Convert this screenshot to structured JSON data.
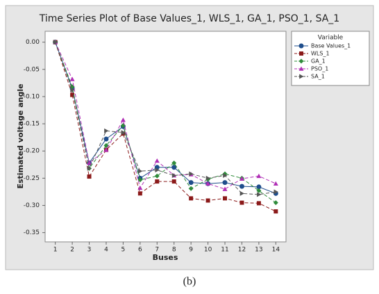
{
  "chart_data": {
    "type": "line",
    "title": "Time Series Plot of Base Values_1, WLS_1, GA_1, PSO_1, SA_1",
    "xlabel": "Buses",
    "ylabel": "Estimated voltage angle",
    "legend_title": "Variable",
    "legend_position": "right",
    "caption": "(b)",
    "x": [
      1,
      2,
      3,
      4,
      5,
      6,
      7,
      8,
      9,
      10,
      11,
      12,
      13,
      14
    ],
    "xlim": [
      0.4,
      14.6
    ],
    "xticks": [
      1,
      2,
      3,
      4,
      5,
      6,
      7,
      8,
      9,
      10,
      11,
      12,
      13,
      14
    ],
    "ylim": [
      -0.367,
      0.02
    ],
    "yticks": [
      {
        "value": 0,
        "label": "0.00"
      },
      {
        "value": -0.05,
        "label": "-0.05"
      },
      {
        "value": -0.1,
        "label": "-0.10"
      },
      {
        "value": -0.15,
        "label": "-0.15"
      },
      {
        "value": -0.2,
        "label": "-0.20"
      },
      {
        "value": -0.25,
        "label": "-0.25"
      },
      {
        "value": -0.3,
        "label": "-0.30"
      },
      {
        "value": -0.35,
        "label": "-0.35"
      }
    ],
    "series": [
      {
        "name": "Base Values_1",
        "color": "#1f4e8c",
        "marker": "circle",
        "dashed": false,
        "values": [
          0,
          -0.085,
          -0.222,
          -0.178,
          -0.155,
          -0.25,
          -0.23,
          -0.23,
          -0.258,
          -0.26,
          -0.258,
          -0.265,
          -0.266,
          -0.278
        ]
      },
      {
        "name": "WLS_1",
        "color": "#8b1a1a",
        "marker": "square",
        "dashed": true,
        "values": [
          0,
          -0.097,
          -0.247,
          -0.198,
          -0.168,
          -0.278,
          -0.256,
          -0.256,
          -0.287,
          -0.291,
          -0.287,
          -0.295,
          -0.296,
          -0.311
        ]
      },
      {
        "name": "GA_1",
        "color": "#2e8b3a",
        "marker": "diamond",
        "dashed": true,
        "values": [
          0,
          -0.082,
          -0.232,
          -0.19,
          -0.153,
          -0.253,
          -0.246,
          -0.222,
          -0.269,
          -0.252,
          -0.242,
          -0.25,
          -0.273,
          -0.295
        ]
      },
      {
        "name": "PSO_1",
        "color": "#b02fb5",
        "marker": "triangle",
        "dashed": true,
        "values": [
          0,
          -0.068,
          -0.222,
          -0.198,
          -0.143,
          -0.268,
          -0.218,
          -0.245,
          -0.243,
          -0.26,
          -0.27,
          -0.251,
          -0.246,
          -0.26
        ]
      },
      {
        "name": "SA_1",
        "color": "#555555",
        "marker": "triangle-right",
        "dashed": true,
        "values": [
          0,
          -0.088,
          -0.232,
          -0.163,
          -0.166,
          -0.237,
          -0.235,
          -0.245,
          -0.242,
          -0.25,
          -0.245,
          -0.278,
          -0.28,
          -0.275
        ]
      }
    ]
  }
}
